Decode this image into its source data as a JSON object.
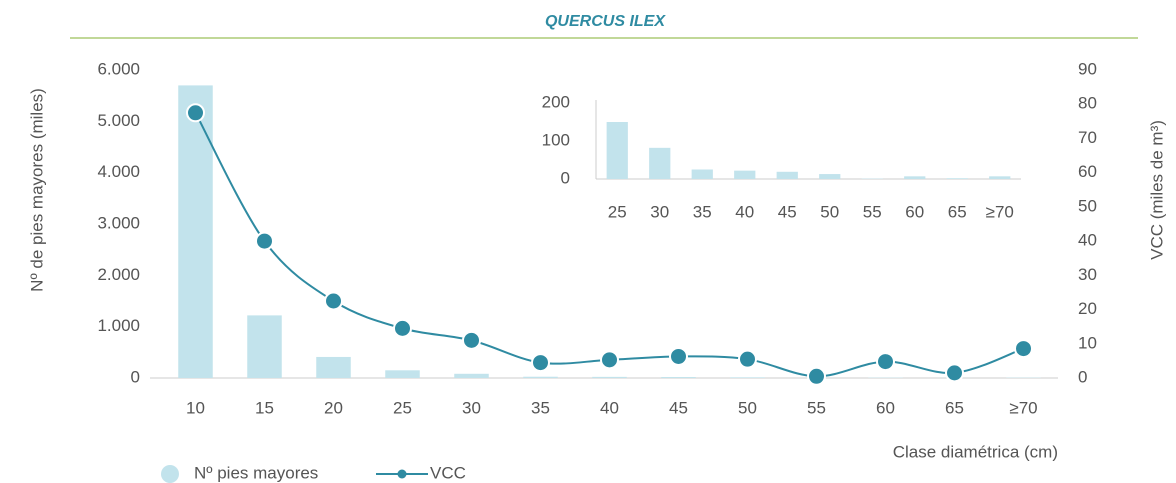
{
  "chart_data": [
    {
      "type": "bar",
      "title": "QUERCUS ILEX",
      "y_label": "Nº de pies mayores (miles)",
      "y2_label": "VCC (miles de m³)",
      "x_label": "Clase diamétrica (cm)",
      "categories": [
        "10",
        "15",
        "20",
        "25",
        "30",
        "35",
        "40",
        "45",
        "50",
        "55",
        "60",
        "65",
        "≥70"
      ],
      "series": [
        {
          "name": "Nº pies mayores",
          "color": "#c2e3ec",
          "values": [
            5700,
            1220,
            410,
            150,
            82,
            25,
            22,
            19,
            13,
            1,
            7,
            2,
            7
          ]
        },
        {
          "name": "VCC",
          "type": "line",
          "axis": "y2",
          "color": "#2f8ba2",
          "values": [
            77.5,
            40,
            22.5,
            14.5,
            11,
            4.5,
            5.3,
            6.3,
            5.5,
            0.5,
            4.8,
            1.5,
            8.6
          ]
        }
      ],
      "ylim": [
        0,
        6000
      ],
      "yticks": [
        0,
        {
          "value": 1000,
          "label": "1.000"
        },
        {
          "value": 2000,
          "label": "2.000"
        },
        {
          "value": 3000,
          "label": "3.000"
        },
        {
          "value": 4000,
          "label": "4.000"
        },
        {
          "value": 5000,
          "label": "5.000"
        },
        {
          "value": 6000,
          "label": "6.000"
        }
      ],
      "y2lim": [
        0,
        90
      ],
      "y2ticks": [
        0,
        10,
        20,
        30,
        40,
        50,
        60,
        70,
        80,
        90
      ],
      "legend": "bottom-left"
    },
    {
      "type": "bar",
      "categories": [
        "25",
        "30",
        "35",
        "40",
        "45",
        "50",
        "55",
        "60",
        "65",
        "≥70"
      ],
      "values": [
        150,
        82,
        25,
        22,
        19,
        13,
        1,
        7,
        2,
        7
      ],
      "color": "#c2e3ec",
      "ylim": [
        0,
        200
      ],
      "yticks": [
        0,
        100,
        200
      ]
    }
  ]
}
